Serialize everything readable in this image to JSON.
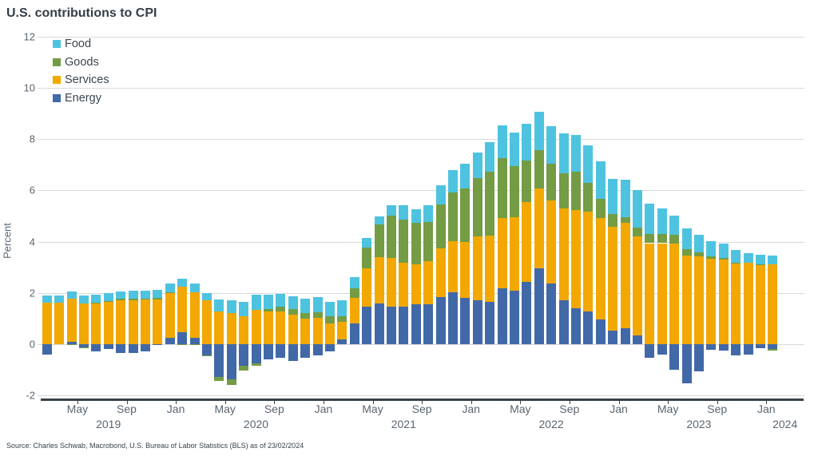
{
  "title": "U.S. contributions to CPI",
  "legend": {
    "items": [
      {
        "label": "Food",
        "color": "#4ec3e0"
      },
      {
        "label": "Goods",
        "color": "#739c44"
      },
      {
        "label": "Services",
        "color": "#f2a800"
      },
      {
        "label": "Energy",
        "color": "#4169a8"
      }
    ]
  },
  "y_axis": {
    "label": "Percent",
    "ticks": [
      "12",
      "10",
      "8",
      "6",
      "4",
      "2",
      "0",
      "-2"
    ]
  },
  "x_axis": {
    "month_ticks": [
      {
        "label": "May",
        "bar_index": 3
      },
      {
        "label": "Sep",
        "bar_index": 7
      },
      {
        "label": "Jan",
        "bar_index": 11
      },
      {
        "label": "May",
        "bar_index": 15
      },
      {
        "label": "Sep",
        "bar_index": 19
      },
      {
        "label": "Jan",
        "bar_index": 23
      },
      {
        "label": "May",
        "bar_index": 27
      },
      {
        "label": "Sep",
        "bar_index": 31
      },
      {
        "label": "Jan",
        "bar_index": 35
      },
      {
        "label": "May",
        "bar_index": 39
      },
      {
        "label": "Sep",
        "bar_index": 43
      },
      {
        "label": "Jan",
        "bar_index": 47
      },
      {
        "label": "May",
        "bar_index": 51
      },
      {
        "label": "Sep",
        "bar_index": 55
      },
      {
        "label": "Jan",
        "bar_index": 59
      }
    ],
    "year_labels": [
      {
        "label": "2019",
        "center_index": 5
      },
      {
        "label": "2020",
        "center_index": 17
      },
      {
        "label": "2021",
        "center_index": 29
      },
      {
        "label": "2022",
        "center_index": 41
      },
      {
        "label": "2023",
        "center_index": 53
      },
      {
        "label": "2024",
        "center_index": 60
      }
    ]
  },
  "footer": {
    "source": "Source: Charles Schwab, Macrobond, U.S. Bureau of Labor Statistics (BLS) as of 23/02/2024"
  },
  "chart_data": {
    "type": "bar",
    "stacked": true,
    "title": "U.S. contributions to CPI",
    "ylabel": "Percent",
    "ylim": [
      -2,
      12
    ],
    "grid": true,
    "legend_position": "top-left",
    "stack_order_note": "stacked bottom-to-top: Energy, Services, Goods, Food; negative values stack downward in same order",
    "unit": "percentage-point contribution to CPI year-over-year",
    "categories": [
      "Feb 2019",
      "Mar 2019",
      "Apr 2019",
      "May 2019",
      "Jun 2019",
      "Jul 2019",
      "Aug 2019",
      "Sep 2019",
      "Oct 2019",
      "Nov 2019",
      "Dec 2019",
      "Jan 2020",
      "Feb 2020",
      "Mar 2020",
      "Apr 2020",
      "May 2020",
      "Jun 2020",
      "Jul 2020",
      "Aug 2020",
      "Sep 2020",
      "Oct 2020",
      "Nov 2020",
      "Dec 2020",
      "Jan 2021",
      "Feb 2021",
      "Mar 2021",
      "Apr 2021",
      "May 2021",
      "Jun 2021",
      "Jul 2021",
      "Aug 2021",
      "Sep 2021",
      "Oct 2021",
      "Nov 2021",
      "Dec 2021",
      "Jan 2022",
      "Feb 2022",
      "Mar 2022",
      "Apr 2022",
      "May 2022",
      "Jun 2022",
      "Jul 2022",
      "Aug 2022",
      "Sep 2022",
      "Oct 2022",
      "Nov 2022",
      "Dec 2022",
      "Jan 2023",
      "Feb 2023",
      "Mar 2023",
      "Apr 2023",
      "May 2023",
      "Jun 2023",
      "Jul 2023",
      "Aug 2023",
      "Sep 2023",
      "Oct 2023",
      "Nov 2023",
      "Dec 2023",
      "Jan 2024"
    ],
    "series": [
      {
        "name": "Energy",
        "color": "#4169a8",
        "values": [
          -0.4,
          0.0,
          0.1,
          -0.12,
          -0.3,
          -0.18,
          -0.35,
          -0.35,
          -0.3,
          -0.05,
          0.25,
          0.45,
          0.25,
          -0.45,
          -1.28,
          -1.38,
          -0.85,
          -0.75,
          -0.6,
          -0.55,
          -0.65,
          -0.55,
          -0.45,
          -0.28,
          0.17,
          0.8,
          1.45,
          1.6,
          1.45,
          1.47,
          1.54,
          1.54,
          1.82,
          2.01,
          1.8,
          1.7,
          1.65,
          2.19,
          2.09,
          2.43,
          2.95,
          2.37,
          1.72,
          1.41,
          1.28,
          0.97,
          0.53,
          0.63,
          0.34,
          -0.54,
          -0.41,
          -0.99,
          -1.53,
          -1.06,
          -0.23,
          -0.25,
          -0.45,
          -0.4,
          -0.15,
          -0.2
        ]
      },
      {
        "name": "Services",
        "color": "#f2a800",
        "values": [
          1.62,
          1.62,
          1.68,
          1.6,
          1.6,
          1.65,
          1.72,
          1.72,
          1.73,
          1.75,
          1.75,
          1.78,
          1.78,
          1.7,
          1.28,
          1.2,
          1.1,
          1.35,
          1.26,
          1.26,
          1.15,
          0.98,
          1.02,
          0.82,
          0.7,
          1.0,
          1.5,
          1.78,
          1.92,
          1.7,
          1.56,
          1.7,
          1.91,
          2.0,
          2.19,
          2.52,
          2.6,
          2.74,
          2.86,
          3.12,
          3.14,
          3.23,
          3.57,
          3.83,
          3.88,
          3.94,
          4.06,
          4.09,
          3.85,
          3.94,
          3.94,
          3.91,
          3.47,
          3.42,
          3.34,
          3.3,
          3.16,
          3.18,
          3.1,
          3.1
        ]
      },
      {
        "name": "Goods",
        "color": "#739c44",
        "values": [
          0.0,
          0.0,
          -0.05,
          -0.03,
          0.02,
          0.03,
          0.05,
          0.05,
          0.05,
          0.05,
          0.02,
          -0.05,
          -0.03,
          -0.02,
          -0.15,
          -0.22,
          -0.18,
          -0.1,
          0.12,
          0.19,
          0.22,
          0.23,
          0.22,
          0.26,
          0.23,
          0.37,
          0.83,
          1.28,
          1.66,
          1.68,
          1.64,
          1.52,
          1.72,
          1.91,
          2.1,
          2.25,
          2.47,
          2.34,
          1.99,
          1.62,
          1.49,
          1.43,
          1.39,
          1.48,
          1.12,
          0.77,
          0.49,
          0.23,
          0.35,
          0.37,
          0.37,
          0.37,
          0.23,
          0.17,
          0.08,
          0.06,
          0.03,
          0.0,
          0.02,
          -0.06
        ]
      },
      {
        "name": "Food",
        "color": "#4ec3e0",
        "values": [
          0.28,
          0.28,
          0.27,
          0.3,
          0.3,
          0.3,
          0.28,
          0.3,
          0.32,
          0.32,
          0.33,
          0.33,
          0.33,
          0.3,
          0.47,
          0.52,
          0.55,
          0.58,
          0.55,
          0.52,
          0.5,
          0.55,
          0.58,
          0.58,
          0.6,
          0.46,
          0.37,
          0.34,
          0.39,
          0.56,
          0.52,
          0.66,
          0.75,
          0.88,
          0.94,
          1.01,
          1.15,
          1.26,
          1.32,
          1.42,
          1.48,
          1.49,
          1.55,
          1.46,
          1.48,
          1.45,
          1.38,
          1.46,
          1.46,
          1.16,
          1.0,
          0.74,
          0.81,
          0.69,
          0.59,
          0.55,
          0.47,
          0.37,
          0.37,
          0.35
        ]
      }
    ]
  }
}
